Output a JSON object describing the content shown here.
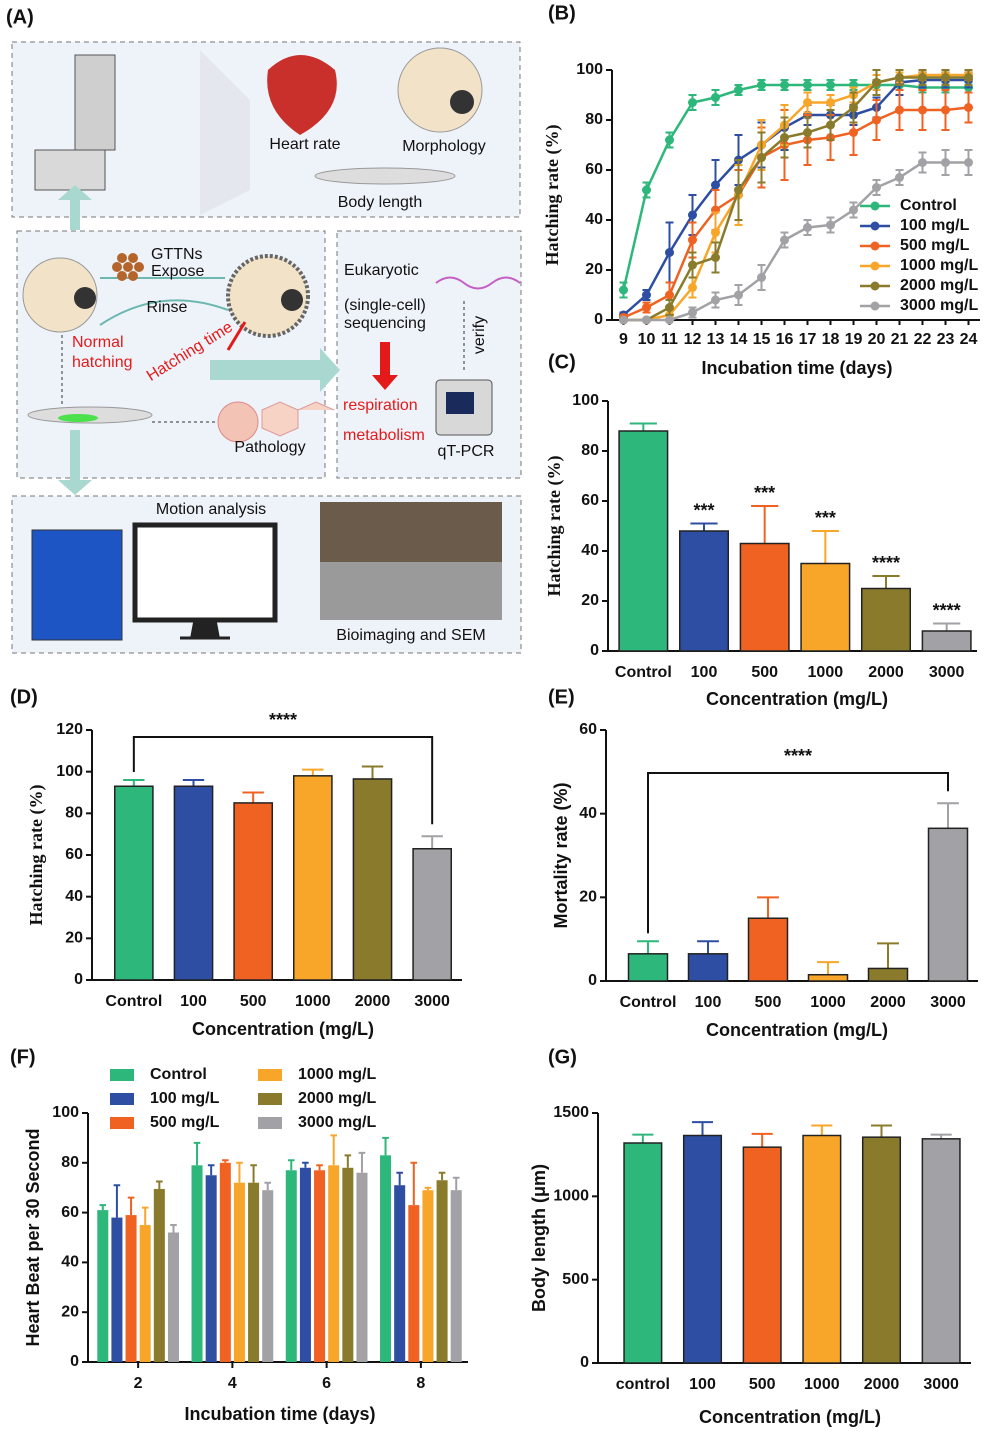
{
  "diagram": {
    "label": "(A)",
    "heart_rate": "Heart rate",
    "morphology": "Morphology",
    "body_length": "Body length",
    "gttns": "GTTNs",
    "expose": "Expose",
    "rinse": "Rinse",
    "normal": "Normal",
    "hatching": "hatching",
    "hatching_time": "Hatching time",
    "eukaryotic": "Eukaryotic",
    "single_cell": "(single-cell)",
    "sequencing": "sequencing",
    "verify": "verify",
    "respiration": "respiration",
    "metabolism": "metabolism",
    "qtpcr": "qT-PCR",
    "pathology": "Pathology",
    "motion": "Motion analysis",
    "bioimaging": "Bioimaging and SEM"
  },
  "chart_data": [
    {
      "label": "(B)",
      "type": "line",
      "x": [
        9,
        10,
        11,
        12,
        13,
        14,
        15,
        16,
        17,
        18,
        19,
        20,
        21,
        22,
        23,
        24
      ],
      "xlim": [
        8.5,
        24.5
      ],
      "xticks": [
        9,
        10,
        11,
        12,
        13,
        14,
        15,
        16,
        17,
        18,
        19,
        20,
        21,
        22,
        23,
        24
      ],
      "ylim": [
        0,
        100
      ],
      "yticks": [
        0,
        20,
        40,
        60,
        80,
        100
      ],
      "xlabel": "Incubation time (days)",
      "ylabel": "Hatching rate (%)",
      "legend": "lower right",
      "series": [
        {
          "name": "Control",
          "color": "#2db77b",
          "values": [
            12,
            52,
            72,
            87,
            89,
            92,
            94,
            94,
            94,
            94,
            94,
            94,
            94,
            93,
            93,
            93
          ],
          "errors": [
            3,
            3,
            3,
            3,
            3,
            2,
            2,
            2,
            2,
            2,
            2,
            2,
            2,
            2,
            2,
            2
          ]
        },
        {
          "name": "100 mg/L",
          "color": "#2d4ea2",
          "values": [
            2,
            10,
            27,
            42,
            54,
            64,
            70,
            77,
            82,
            82,
            82,
            85,
            95,
            96,
            96,
            96
          ],
          "errors": [
            1,
            2,
            12,
            8,
            10,
            10,
            9,
            9,
            4,
            4,
            4,
            4,
            5,
            3,
            3,
            3
          ]
        },
        {
          "name": "500 mg/L",
          "color": "#f06222",
          "values": [
            1,
            5,
            10,
            32,
            44,
            50,
            65,
            70,
            72,
            73,
            75,
            80,
            84,
            84,
            84,
            85
          ],
          "errors": [
            1,
            2,
            5,
            7,
            8,
            10,
            12,
            14,
            10,
            9,
            9,
            8,
            8,
            8,
            8,
            6
          ]
        },
        {
          "name": "1000 mg/L",
          "color": "#f8a62a",
          "values": [
            0,
            0,
            2,
            13,
            35,
            50,
            70,
            78,
            87,
            87,
            90,
            95,
            97,
            98,
            98,
            98
          ],
          "errors": [
            0,
            0,
            2,
            4,
            8,
            12,
            10,
            8,
            4,
            3,
            3,
            3,
            2,
            2,
            2,
            2
          ]
        },
        {
          "name": "2000 mg/L",
          "color": "#8a7b2c",
          "values": [
            0,
            0,
            5,
            22,
            25,
            52,
            65,
            73,
            75,
            78,
            85,
            95,
            97,
            97,
            97,
            97
          ],
          "errors": [
            0,
            0,
            3,
            5,
            6,
            12,
            10,
            8,
            6,
            6,
            6,
            5,
            3,
            3,
            3,
            3
          ]
        },
        {
          "name": "3000 mg/L",
          "color": "#a1a1a6",
          "values": [
            0,
            0,
            0,
            3,
            8,
            10,
            17,
            32,
            37,
            38,
            44,
            53,
            57,
            63,
            63,
            63
          ],
          "errors": [
            0,
            0,
            0,
            2,
            3,
            4,
            5,
            3,
            3,
            3,
            3,
            3,
            3,
            4,
            5,
            5
          ]
        }
      ]
    },
    {
      "label": "(C)",
      "type": "bar",
      "categories": [
        "Control",
        "100",
        "500",
        "1000",
        "2000",
        "3000"
      ],
      "values": [
        88,
        48,
        43,
        35,
        25,
        8
      ],
      "errors": [
        3,
        3,
        15,
        13,
        5,
        3
      ],
      "significance": [
        null,
        "***",
        "***",
        "***",
        "****",
        "****"
      ],
      "colors": [
        "#2db77b",
        "#2d4ea2",
        "#f06222",
        "#f8a62a",
        "#8a7b2c",
        "#a1a1a6"
      ],
      "ylim": [
        0,
        100
      ],
      "yticks": [
        0,
        20,
        40,
        60,
        80,
        100
      ],
      "xlabel": "Concentration (mg/L)",
      "ylabel": "Hatching rate (%)"
    },
    {
      "label": "(D)",
      "type": "bar",
      "categories": [
        "Control",
        "100",
        "500",
        "1000",
        "2000",
        "3000"
      ],
      "values": [
        93,
        93,
        85,
        98,
        96.5,
        63
      ],
      "errors": [
        3,
        3,
        5,
        3,
        6,
        6
      ],
      "bracket": "****",
      "colors": [
        "#2db77b",
        "#2d4ea2",
        "#f06222",
        "#f8a62a",
        "#8a7b2c",
        "#a1a1a6"
      ],
      "ylim": [
        0,
        120
      ],
      "yticks": [
        0,
        20,
        40,
        60,
        80,
        100,
        120
      ],
      "xlabel": "Concentration (mg/L)",
      "ylabel": "Hatching rate (%)"
    },
    {
      "label": "(E)",
      "type": "bar",
      "categories": [
        "Control",
        "100",
        "500",
        "1000",
        "2000",
        "3000"
      ],
      "values": [
        6.5,
        6.5,
        15,
        1.5,
        3,
        36.5
      ],
      "errors": [
        3,
        3,
        5,
        3,
        6,
        6
      ],
      "bracket": "****",
      "colors": [
        "#2db77b",
        "#2d4ea2",
        "#f06222",
        "#f8a62a",
        "#8a7b2c",
        "#a1a1a6"
      ],
      "ylim": [
        0,
        60
      ],
      "yticks": [
        0,
        20,
        40,
        60
      ],
      "xlabel": "Concentration (mg/L)",
      "ylabel": "Mortality rate (%)"
    },
    {
      "label": "(F)",
      "type": "grouped_bar",
      "categories": [
        "2",
        "4",
        "6",
        "8"
      ],
      "ylim": [
        0,
        100
      ],
      "yticks": [
        0,
        20,
        40,
        60,
        80,
        100
      ],
      "xlabel": "Incubation time (days)",
      "ylabel": "Heart Beat per 30 Second",
      "series": [
        {
          "name": "Control",
          "color": "#2db77b",
          "values": [
            61,
            79,
            77,
            83
          ],
          "errors": [
            2,
            9,
            4,
            7
          ]
        },
        {
          "name": "100 mg/L",
          "color": "#2d4ea2",
          "values": [
            58,
            75,
            78,
            71
          ],
          "errors": [
            13,
            4,
            2,
            5
          ]
        },
        {
          "name": "500 mg/L",
          "color": "#f06222",
          "values": [
            59,
            80,
            77,
            63
          ],
          "errors": [
            7,
            1,
            2,
            17
          ]
        },
        {
          "name": "1000 mg/L",
          "color": "#f8a62a",
          "values": [
            55,
            72,
            79,
            69
          ],
          "errors": [
            7,
            8,
            12,
            1
          ]
        },
        {
          "name": "2000 mg/L",
          "color": "#8a7b2c",
          "values": [
            69.5,
            72,
            78,
            73
          ],
          "errors": [
            3,
            7,
            5,
            3
          ]
        },
        {
          "name": "3000 mg/L",
          "color": "#a1a1a6",
          "values": [
            52,
            69,
            76,
            69
          ],
          "errors": [
            3,
            3,
            8,
            5
          ]
        }
      ]
    },
    {
      "label": "(G)",
      "type": "bar",
      "categories": [
        "control",
        "100",
        "500",
        "1000",
        "2000",
        "3000"
      ],
      "values": [
        1320,
        1365,
        1295,
        1365,
        1355,
        1345
      ],
      "errors": [
        50,
        80,
        80,
        60,
        70,
        25
      ],
      "colors": [
        "#2db77b",
        "#2d4ea2",
        "#f06222",
        "#f8a62a",
        "#8a7b2c",
        "#a1a1a6"
      ],
      "ylim": [
        0,
        1500
      ],
      "yticks": [
        0,
        500,
        1000,
        1500
      ],
      "xlabel": "Concentration (mg/L)",
      "ylabel": "Body length (μm)"
    }
  ]
}
